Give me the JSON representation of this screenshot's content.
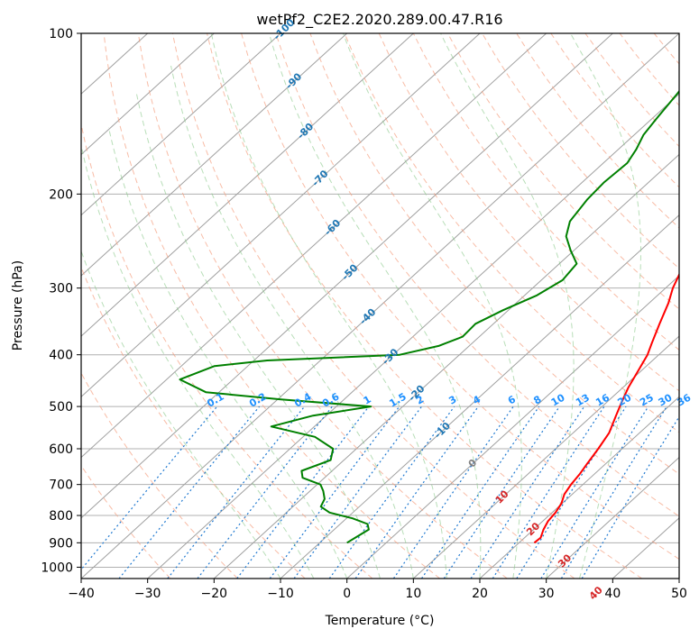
{
  "chart_data": {
    "type": "line",
    "title": "wetPf2_C2E2.2020.289.00.47.R16",
    "xlabel": "Temperature (°C)",
    "ylabel": "Pressure (hPa)",
    "xlim": [
      -40,
      50
    ],
    "ylim": [
      1050,
      100
    ],
    "yscale": "log",
    "skew": true,
    "grid": true,
    "x_ticks": [
      "−40",
      "−30",
      "−20",
      "−10",
      "0",
      "10",
      "20",
      "30",
      "40",
      "50"
    ],
    "y_ticks": [
      "100",
      "200",
      "300",
      "400",
      "500",
      "600",
      "700",
      "800",
      "900",
      "1000"
    ],
    "series": [
      {
        "name": "",
        "color": "#ff0000",
        "points": [
          [
            900,
            22.3
          ],
          [
            880,
            22.4
          ],
          [
            850,
            21.5
          ],
          [
            820,
            20.8
          ],
          [
            790,
            20.5
          ],
          [
            760,
            19.9
          ],
          [
            730,
            18.8
          ],
          [
            700,
            18.2
          ],
          [
            670,
            17.8
          ],
          [
            640,
            17.2
          ],
          [
            600,
            16.4
          ],
          [
            560,
            15.4
          ],
          [
            520,
            13.6
          ],
          [
            490,
            12.2
          ],
          [
            460,
            10.8
          ],
          [
            430,
            9.6
          ],
          [
            400,
            8.3
          ],
          [
            380,
            7.0
          ],
          [
            350,
            5.0
          ],
          [
            320,
            2.9
          ],
          [
            300,
            1.1
          ],
          [
            280,
            -0.4
          ],
          [
            265,
            -1.3
          ],
          [
            250,
            -1.7
          ],
          [
            235,
            -1.9
          ],
          [
            220,
            -2.2
          ],
          [
            200,
            -2.9
          ],
          [
            185,
            -3.8
          ],
          [
            170,
            -4.8
          ],
          [
            158,
            -5.3
          ],
          [
            148,
            -5.9
          ],
          [
            138,
            -6.4
          ],
          [
            128,
            -7.0
          ],
          [
            118,
            -7.6
          ],
          [
            110,
            -8.4
          ],
          [
            100,
            -9.6
          ]
        ]
      },
      {
        "name": "",
        "color": "#008000",
        "points": [
          [
            900,
            -5.9
          ],
          [
            880,
            -5.5
          ],
          [
            850,
            -4.8
          ],
          [
            830,
            -5.9
          ],
          [
            810,
            -9.1
          ],
          [
            790,
            -13.5
          ],
          [
            770,
            -15.8
          ],
          [
            745,
            -16.5
          ],
          [
            720,
            -18.0
          ],
          [
            700,
            -19.5
          ],
          [
            680,
            -23.3
          ],
          [
            660,
            -24.6
          ],
          [
            630,
            -22.0
          ],
          [
            600,
            -23.5
          ],
          [
            570,
            -28.2
          ],
          [
            545,
            -36.5
          ],
          [
            520,
            -32.0
          ],
          [
            500,
            -24.8
          ],
          [
            485,
            -39.5
          ],
          [
            470,
            -52.0
          ],
          [
            445,
            -58.0
          ],
          [
            420,
            -55.0
          ],
          [
            410,
            -48.0
          ],
          [
            400,
            -29.0
          ],
          [
            385,
            -24.6
          ],
          [
            370,
            -22.5
          ],
          [
            350,
            -22.7
          ],
          [
            330,
            -20.8
          ],
          [
            310,
            -18.2
          ],
          [
            290,
            -16.8
          ],
          [
            270,
            -17.4
          ],
          [
            255,
            -20.5
          ],
          [
            240,
            -23.5
          ],
          [
            225,
            -25.4
          ],
          [
            205,
            -26.4
          ],
          [
            190,
            -26.7
          ],
          [
            175,
            -26.4
          ],
          [
            165,
            -27.3
          ],
          [
            155,
            -28.6
          ],
          [
            145,
            -29.3
          ],
          [
            130,
            -30.3
          ],
          [
            118,
            -31.3
          ],
          [
            108,
            -32.6
          ],
          [
            100,
            -33.5
          ]
        ]
      }
    ],
    "dry_adiabat_labels": [
      "-100",
      "-90",
      "-80",
      "-70",
      "-60",
      "-50",
      "-40",
      "-30",
      "-20",
      "-10",
      "0",
      "10",
      "20",
      "30",
      "40"
    ],
    "mixing_ratio_labels": [
      "0.1",
      "0.2",
      "0.4",
      "0.6",
      "1",
      "1.5",
      "2",
      "3",
      "4",
      "6",
      "8",
      "10",
      "13",
      "16",
      "20",
      "25",
      "30",
      "36"
    ],
    "colors": {
      "dry_adiabat_label": "#1f77b4",
      "dry_adiabat_label_zero": "#808080",
      "dry_adiabat_label_warm": "#d62728",
      "mixing_ratio_label": "#1e90ff",
      "isotherm": "#a0a0a0",
      "dry_adiabat": "#f5a080",
      "moist_adiabat": "#88c888",
      "mixing_ratio": "#1e78d0"
    }
  }
}
